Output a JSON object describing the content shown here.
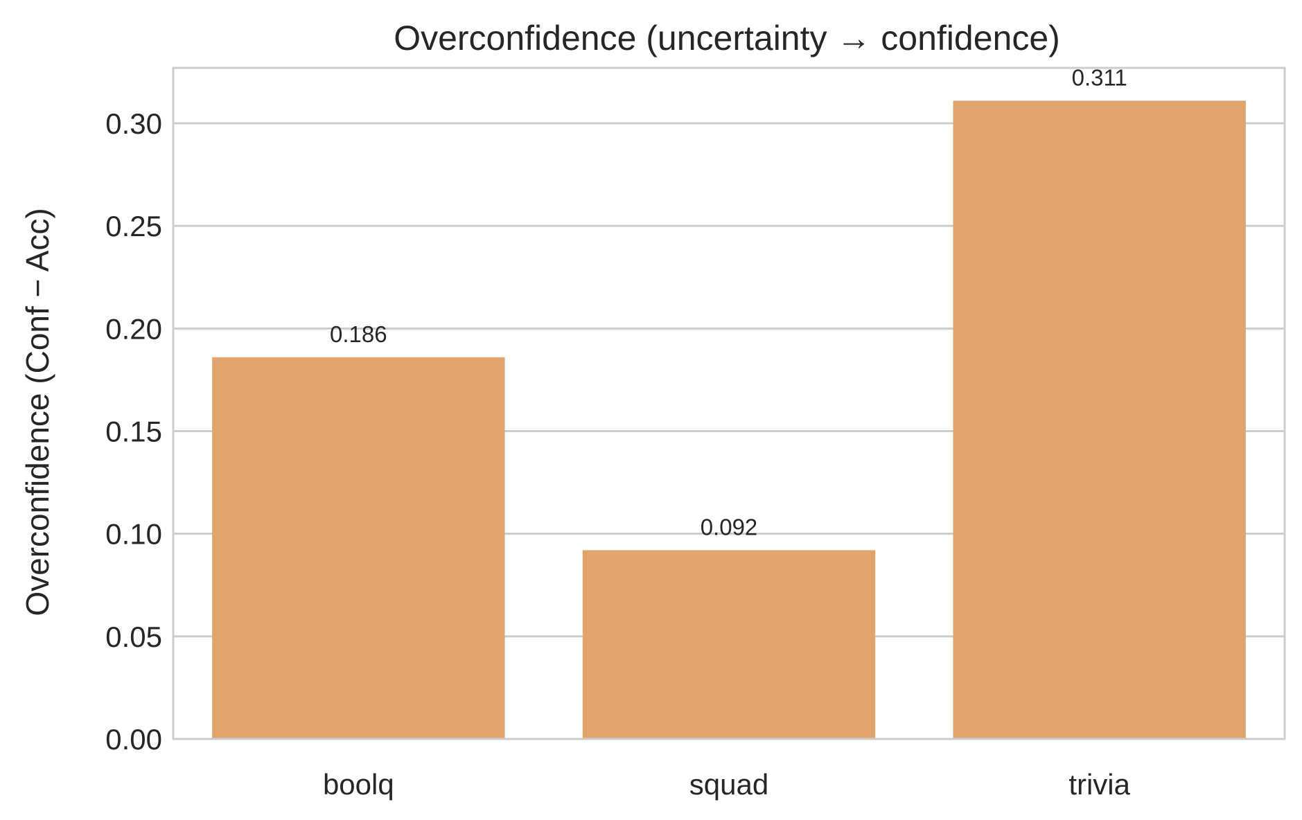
{
  "chart_data": {
    "type": "bar",
    "title": "Overconfidence (uncertainty → confidence)",
    "xlabel": "",
    "ylabel": "Overconfidence (Conf − Acc)",
    "categories": [
      "boolq",
      "squad",
      "trivia"
    ],
    "values": [
      0.186,
      0.092,
      0.311
    ],
    "data_labels": [
      "0.186",
      "0.092",
      "0.311"
    ],
    "yticks": [
      0.0,
      0.05,
      0.1,
      0.15,
      0.2,
      0.25,
      0.3
    ],
    "ytick_labels": [
      "0.00",
      "0.05",
      "0.10",
      "0.15",
      "0.20",
      "0.25",
      "0.30"
    ],
    "ylim": [
      0,
      0.327
    ],
    "grid": true,
    "bar_color": "#e0a46c"
  }
}
